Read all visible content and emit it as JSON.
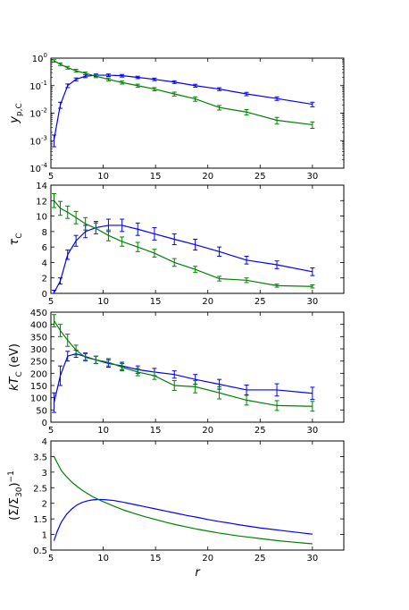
{
  "chart_data": [
    {
      "type": "line",
      "ylabel_main": "y",
      "ylabel_sub": "p,C",
      "yscale": "log",
      "xlim": [
        5,
        33
      ],
      "ylim_exp": [
        -4,
        0
      ],
      "yticks_exp": [
        -4,
        -3,
        -2,
        -1,
        0
      ],
      "xticks": [
        5,
        10,
        15,
        20,
        25,
        30
      ],
      "grid": false,
      "x": [
        5.3,
        5.9,
        6.6,
        7.4,
        8.3,
        9.3,
        10.5,
        11.8,
        13.3,
        14.9,
        16.8,
        18.8,
        21.1,
        23.7,
        26.6,
        30.0
      ],
      "series": [
        {
          "color": "#0000ff",
          "values": [
            0.0011,
            0.02,
            0.1,
            0.17,
            0.22,
            0.24,
            0.24,
            0.23,
            0.2,
            0.17,
            0.135,
            0.1,
            0.075,
            0.05,
            0.034,
            0.021
          ],
          "errors": [
            0.0005,
            0.005,
            0.015,
            0.02,
            0.025,
            0.025,
            0.025,
            0.025,
            0.02,
            0.018,
            0.015,
            0.012,
            0.009,
            0.007,
            0.005,
            0.004
          ]
        },
        {
          "color": "#008000",
          "values": [
            0.8,
            0.6,
            0.45,
            0.35,
            0.28,
            0.22,
            0.17,
            0.13,
            0.1,
            0.075,
            0.05,
            0.033,
            0.016,
            0.011,
            0.0055,
            0.0038
          ],
          "errors": [
            0.08,
            0.06,
            0.05,
            0.04,
            0.03,
            0.025,
            0.02,
            0.016,
            0.013,
            0.01,
            0.008,
            0.006,
            0.003,
            0.0025,
            0.0015,
            0.001
          ]
        }
      ]
    },
    {
      "type": "line",
      "ylabel_main": "τ",
      "ylabel_sub": "C",
      "yscale": "linear",
      "xlim": [
        5,
        33
      ],
      "ylim": [
        0,
        14
      ],
      "yticks": [
        0,
        2,
        4,
        6,
        8,
        10,
        12,
        14
      ],
      "xticks": [
        5,
        10,
        15,
        20,
        25,
        30
      ],
      "grid": false,
      "x": [
        5.3,
        5.9,
        6.6,
        7.4,
        8.3,
        9.3,
        10.5,
        11.8,
        13.3,
        14.9,
        16.8,
        18.8,
        21.1,
        23.7,
        26.6,
        30.0
      ],
      "series": [
        {
          "color": "#0000ff",
          "values": [
            0.1,
            1.6,
            5.0,
            6.8,
            8.0,
            8.5,
            8.8,
            8.8,
            8.3,
            7.7,
            7.0,
            6.3,
            5.4,
            4.3,
            3.7,
            2.8
          ],
          "errors": [
            0.3,
            0.4,
            0.6,
            0.7,
            0.8,
            0.8,
            0.8,
            0.8,
            0.8,
            0.8,
            0.7,
            0.7,
            0.6,
            0.5,
            0.5,
            0.5
          ]
        },
        {
          "color": "#008000",
          "values": [
            12.0,
            11.0,
            10.5,
            9.8,
            9.0,
            8.4,
            7.5,
            6.7,
            6.0,
            5.2,
            4.0,
            3.1,
            1.9,
            1.7,
            1.0,
            0.9
          ],
          "errors": [
            0.9,
            0.9,
            0.8,
            0.8,
            0.8,
            0.7,
            0.7,
            0.6,
            0.6,
            0.5,
            0.5,
            0.4,
            0.3,
            0.3,
            0.2,
            0.2
          ]
        }
      ]
    },
    {
      "type": "line",
      "ylabel_main": "kT",
      "ylabel_sub": "C",
      "ylabel_suffix": " (eV)",
      "yscale": "linear",
      "xlim": [
        5,
        33
      ],
      "ylim": [
        0,
        450
      ],
      "yticks": [
        0,
        50,
        100,
        150,
        200,
        250,
        300,
        350,
        400,
        450
      ],
      "xticks": [
        5,
        10,
        15,
        20,
        25,
        30
      ],
      "grid": false,
      "x": [
        5.3,
        5.9,
        6.6,
        7.4,
        8.3,
        9.3,
        10.5,
        11.8,
        13.3,
        14.9,
        16.8,
        18.8,
        21.1,
        23.7,
        26.6,
        30.0
      ],
      "series": [
        {
          "color": "#0000ff",
          "values": [
            80,
            190,
            270,
            280,
            268,
            255,
            240,
            230,
            215,
            205,
            195,
            175,
            155,
            132,
            132,
            118
          ],
          "errors": [
            40,
            40,
            20,
            15,
            15,
            15,
            15,
            15,
            15,
            15,
            15,
            20,
            20,
            20,
            25,
            25
          ]
        },
        {
          "color": "#008000",
          "values": [
            415,
            375,
            335,
            295,
            265,
            255,
            245,
            225,
            205,
            190,
            150,
            145,
            120,
            90,
            68,
            65
          ],
          "errors": [
            25,
            25,
            25,
            20,
            15,
            15,
            15,
            15,
            15,
            15,
            20,
            25,
            25,
            20,
            20,
            20
          ]
        }
      ]
    },
    {
      "type": "line",
      "ylabel_text": "(Σ/Σ",
      "ylabel_sub": "30",
      "ylabel_tail": ")",
      "ylabel_sup": "−1",
      "xlabel": "r",
      "yscale": "linear",
      "xlim": [
        5,
        33
      ],
      "ylim": [
        0.5,
        4.0
      ],
      "yticks": [
        0.5,
        1.0,
        1.5,
        2.0,
        2.5,
        3.0,
        3.5,
        4.0
      ],
      "xticks": [
        5,
        10,
        15,
        20,
        25,
        30
      ],
      "grid": false,
      "x": [
        5.3,
        5.6,
        6.0,
        6.5,
        7.0,
        7.5,
        8.0,
        8.5,
        9.0,
        9.5,
        10.0,
        11.0,
        12.0,
        13.0,
        14.0,
        15.0,
        16.0,
        17.0,
        18.0,
        19.0,
        20.0,
        21.0,
        22.0,
        23.0,
        24.0,
        25.0,
        26.0,
        27.0,
        28.0,
        29.0,
        30.0
      ],
      "series": [
        {
          "color": "#0000ff",
          "values": [
            0.8,
            1.1,
            1.4,
            1.65,
            1.82,
            1.95,
            2.03,
            2.08,
            2.11,
            2.12,
            2.12,
            2.09,
            2.03,
            1.96,
            1.89,
            1.82,
            1.75,
            1.68,
            1.61,
            1.55,
            1.48,
            1.42,
            1.37,
            1.31,
            1.26,
            1.21,
            1.17,
            1.13,
            1.09,
            1.05,
            1.01
          ]
        },
        {
          "color": "#008000",
          "values": [
            3.5,
            3.3,
            3.05,
            2.85,
            2.68,
            2.54,
            2.42,
            2.31,
            2.21,
            2.13,
            2.05,
            1.91,
            1.78,
            1.67,
            1.57,
            1.48,
            1.39,
            1.31,
            1.24,
            1.17,
            1.11,
            1.05,
            1.0,
            0.95,
            0.91,
            0.87,
            0.83,
            0.79,
            0.76,
            0.73,
            0.7
          ]
        }
      ]
    }
  ]
}
